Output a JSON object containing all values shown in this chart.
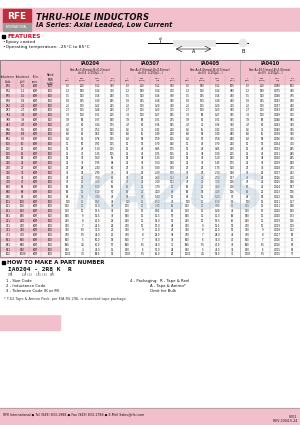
{
  "title_line1": "THRU-HOLE INDUCTORS",
  "title_line2": "IA Series: Axial Leaded, Low Current",
  "header_bg": "#f2c0cc",
  "pink_color": "#f2c0cc",
  "dark_pink": "#c8505a",
  "rfe_red": "#be2d3a",
  "rfe_gray": "#9a9a9a",
  "grid_color": "#aaaaaa",
  "grid_dark": "#666666",
  "text_dark": "#111111",
  "features_red": "#cc1133",
  "white": "#ffffff",
  "features": [
    "•Epoxy coated",
    "•Operating temperature: -25°C to 85°C"
  ],
  "series_headers": [
    "IA0204",
    "IA0307",
    "IA0405",
    "IA0410"
  ],
  "size_texts": [
    "Size:A=3.4(max),B=0.2(max)",
    "Size:A=7.0(max),B=0.5(max)",
    "Size:A=4.6(max),B=0.5(max)",
    "Size:A=10.5(max),B=1.0(max)"
  ],
  "size_texts2": [
    "d=0.4  L(250μ5...)",
    "d=0.4  L(250μ5...)",
    "d=0.5  L(250μ5...)",
    "d=0.5  L(250μ5...)"
  ],
  "left_headers": [
    "Inductance\nCode",
    "Inductance\n(μH)",
    "Tolerance",
    "Rated\nPWR\n(mW)"
  ],
  "sub_col_labels": [
    "L\n(μH)",
    "SRF\n(MHz)",
    "RDC\n(Ω)",
    "IDC\n(mA)"
  ],
  "table_data": [
    [
      "1R0",
      "1.0",
      "K/M",
      "100",
      "1.0",
      "200",
      "0.12",
      "330",
      "1.0",
      "200",
      "0.12",
      "430",
      "1.0",
      "180",
      "0.12",
      "500",
      "1.0",
      "200",
      "0.080",
      "500"
    ],
    [
      "1R2",
      "1.2",
      "K/M",
      "100",
      "1.2",
      "180",
      "0.14",
      "300",
      "1.2",
      "180",
      "0.14",
      "400",
      "1.2",
      "160",
      "0.14",
      "480",
      "1.2",
      "180",
      "0.075",
      "490"
    ],
    [
      "1R5",
      "1.5",
      "K/M",
      "100",
      "1.5",
      "160",
      "0.16",
      "290",
      "1.5",
      "160",
      "0.16",
      "390",
      "1.5",
      "145",
      "0.16",
      "460",
      "1.5",
      "160",
      "0.068",
      "475"
    ],
    [
      "1R8",
      "1.8",
      "K/M",
      "100",
      "1.8",
      "145",
      "0.19",
      "265",
      "1.8",
      "145",
      "0.18",
      "360",
      "1.8",
      "130",
      "0.18",
      "440",
      "1.8",
      "145",
      "0.063",
      "460"
    ],
    [
      "2R2",
      "2.2",
      "K/M",
      "100",
      "2.2",
      "130",
      "0.22",
      "245",
      "2.2",
      "130",
      "0.20",
      "340",
      "2.2",
      "115",
      "0.20",
      "410",
      "2.2",
      "130",
      "0.057",
      "440"
    ],
    [
      "2R7",
      "2.7",
      "K/M",
      "100",
      "2.7",
      "115",
      "0.26",
      "225",
      "2.7",
      "115",
      "0.23",
      "315",
      "2.7",
      "100",
      "0.23",
      "390",
      "2.7",
      "115",
      "0.053",
      "420"
    ],
    [
      "3R3",
      "3.3",
      "K/M",
      "100",
      "3.3",
      "100",
      "0.31",
      "205",
      "3.3",
      "100",
      "0.27",
      "295",
      "3.3",
      "90",
      "0.27",
      "365",
      "3.3",
      "100",
      "0.049",
      "400"
    ],
    [
      "3R9",
      "3.9",
      "K/M",
      "100",
      "3.9",
      "90",
      "0.37",
      "190",
      "3.9",
      "90",
      "0.31",
      "275",
      "3.9",
      "80",
      "0.31",
      "345",
      "3.9",
      "90",
      "0.046",
      "385"
    ],
    [
      "4R7",
      "4.7",
      "K/M",
      "100",
      "4.7",
      "80",
      "0.44",
      "175",
      "4.7",
      "80",
      "0.36",
      "255",
      "4.7",
      "72",
      "0.36",
      "320",
      "4.7",
      "80",
      "0.043",
      "370"
    ],
    [
      "5R6",
      "5.6",
      "K/M",
      "100",
      "5.6",
      "70",
      "0.52",
      "160",
      "5.6",
      "72",
      "0.42",
      "240",
      "5.6",
      "65",
      "0.42",
      "300",
      "5.6",
      "72",
      "0.040",
      "355"
    ],
    [
      "6R8",
      "6.8",
      "K/M",
      "100",
      "6.8",
      "62",
      "0.63",
      "145",
      "6.8",
      "65",
      "0.49",
      "220",
      "6.8",
      "58",
      "0.49",
      "280",
      "6.8",
      "65",
      "0.038",
      "340"
    ],
    [
      "8R2",
      "8.2",
      "K/M",
      "100",
      "8.2",
      "55",
      "0.76",
      "135",
      "8.2",
      "58",
      "0.59",
      "205",
      "8.2",
      "52",
      "0.58",
      "260",
      "8.2",
      "58",
      "0.036",
      "325"
    ],
    [
      "100",
      "10",
      "K/M",
      "100",
      "10",
      "50",
      "0.90",
      "125",
      "10",
      "52",
      "0.70",
      "190",
      "10",
      "46",
      "0.70",
      "240",
      "10",
      "52",
      "0.034",
      "310"
    ],
    [
      "120",
      "12",
      "K/M",
      "100",
      "12",
      "45",
      "1.10",
      "115",
      "12",
      "46",
      "0.85",
      "175",
      "12",
      "42",
      "0.85",
      "220",
      "12",
      "46",
      "0.033",
      "295"
    ],
    [
      "150",
      "15",
      "K/M",
      "100",
      "15",
      "40",
      "1.35",
      "105",
      "15",
      "42",
      "1.05",
      "165",
      "15",
      "38",
      "1.00",
      "205",
      "15",
      "42",
      "0.031",
      "280"
    ],
    [
      "180",
      "18",
      "K/M",
      "100",
      "18",
      "36",
      "1.60",
      "95",
      "18",
      "38",
      "1.25",
      "150",
      "18",
      "35",
      "1.20",
      "190",
      "18",
      "38",
      "0.030",
      "265"
    ],
    [
      "220",
      "22",
      "K/M",
      "100",
      "22",
      "32",
      "1.95",
      "88",
      "22",
      "35",
      "1.50",
      "140",
      "22",
      "32",
      "1.45",
      "175",
      "22",
      "35",
      "0.029",
      "250"
    ],
    [
      "270",
      "27",
      "K/M",
      "100",
      "27",
      "28",
      "2.40",
      "80",
      "27",
      "32",
      "1.80",
      "130",
      "27",
      "29",
      "1.75",
      "160",
      "27",
      "32",
      "0.028",
      "235"
    ],
    [
      "330",
      "33",
      "K/M",
      "100",
      "33",
      "25",
      "2.90",
      "73",
      "33",
      "29",
      "2.20",
      "120",
      "33",
      "26",
      "2.10",
      "148",
      "33",
      "29",
      "0.027",
      "222"
    ],
    [
      "390",
      "39",
      "K/M",
      "100",
      "39",
      "22",
      "3.50",
      "67",
      "39",
      "26",
      "2.60",
      "112",
      "39",
      "24",
      "2.50",
      "137",
      "39",
      "26",
      "0.026",
      "210"
    ],
    [
      "470",
      "47",
      "K/M",
      "100",
      "47",
      "20",
      "4.20",
      "61",
      "47",
      "24",
      "3.10",
      "103",
      "47",
      "22",
      "3.00",
      "126",
      "47",
      "24",
      "0.025",
      "198"
    ],
    [
      "560",
      "56",
      "K/M",
      "100",
      "56",
      "18",
      "5.00",
      "56",
      "56",
      "22",
      "3.70",
      "96",
      "56",
      "20",
      "3.60",
      "116",
      "56",
      "22",
      "0.024",
      "187"
    ],
    [
      "680",
      "68",
      "K/M",
      "100",
      "68",
      "16",
      "6.10",
      "51",
      "68",
      "20",
      "4.50",
      "88",
      "68",
      "18",
      "4.30",
      "106",
      "68",
      "20",
      "0.023",
      "176"
    ],
    [
      "820",
      "82",
      "K/M",
      "100",
      "82",
      "14",
      "7.40",
      "46",
      "82",
      "18",
      "5.40",
      "81",
      "82",
      "16",
      "5.20",
      "97",
      "82",
      "18",
      "0.022",
      "166"
    ],
    [
      "101",
      "100",
      "K/M",
      "100",
      "100",
      "13",
      "9.00",
      "42",
      "100",
      "16",
      "6.50",
      "74",
      "100",
      "15",
      "6.30",
      "89",
      "100",
      "16",
      "0.021",
      "157"
    ],
    [
      "121",
      "120",
      "K/M",
      "100",
      "120",
      "11",
      "11.0",
      "38",
      "120",
      "15",
      "7.90",
      "68",
      "120",
      "13",
      "7.60",
      "81",
      "120",
      "15",
      "0.021",
      "148"
    ],
    [
      "151",
      "150",
      "K/M",
      "100",
      "150",
      "10",
      "13.5",
      "35",
      "150",
      "13",
      "9.60",
      "62",
      "150",
      "12",
      "9.20",
      "74",
      "150",
      "13",
      "0.020",
      "140"
    ],
    [
      "181",
      "180",
      "K/M",
      "100",
      "180",
      "9",
      "16.5",
      "32",
      "180",
      "12",
      "11.5",
      "57",
      "180",
      "11",
      "11.0",
      "68",
      "180",
      "12",
      "0.020",
      "133"
    ],
    [
      "221",
      "220",
      "K/M",
      "100",
      "220",
      "8",
      "20.0",
      "29",
      "220",
      "11",
      "14.0",
      "52",
      "220",
      "10",
      "13.5",
      "62",
      "220",
      "11",
      "0.019",
      "126"
    ],
    [
      "271",
      "270",
      "K/M",
      "100",
      "270",
      "7",
      "24.5",
      "26",
      "270",
      "10",
      "17.0",
      "48",
      "270",
      "9",
      "16.5",
      "57",
      "270",
      "10",
      "0.019",
      "119"
    ],
    [
      "331",
      "330",
      "K/M",
      "100",
      "330",
      "6.5",
      "30.0",
      "24",
      "330",
      "9",
      "21.0",
      "44",
      "330",
      "8",
      "20.0",
      "52",
      "330",
      "9",
      "0.018",
      "112"
    ],
    [
      "471",
      "470",
      "K/M",
      "100",
      "470",
      "5.5",
      "42.0",
      "20",
      "470",
      "8",
      "29.0",
      "38",
      "470",
      "7",
      "28.0",
      "44",
      "470",
      "8",
      "0.017",
      "98"
    ],
    [
      "561",
      "560",
      "K/M",
      "100",
      "560",
      "5",
      "50.0",
      "18",
      "560",
      "7",
      "35.0",
      "34",
      "560",
      "6",
      "33.0",
      "40",
      "560",
      "7",
      "0.016",
      "92"
    ],
    [
      "681",
      "680",
      "K/M",
      "100",
      "680",
      "4.5",
      "61.0",
      "17",
      "680",
      "6.5",
      "42.0",
      "31",
      "680",
      "5.5",
      "40.0",
      "37",
      "680",
      "6.5",
      "0.016",
      "87"
    ],
    [
      "821",
      "820",
      "K/M",
      "100",
      "820",
      "4",
      "74.0",
      "15",
      "820",
      "6",
      "51.0",
      "28",
      "820",
      "5",
      "49.0",
      "34",
      "820",
      "6",
      "0.015",
      "82"
    ],
    [
      "102",
      "1000",
      "K/M",
      "100",
      "1000",
      "3.5",
      "90.0",
      "14",
      "1000",
      "5.5",
      "62.0",
      "26",
      "1000",
      "4.5",
      "59.0",
      "31",
      "1000",
      "5.5",
      "0.015",
      "77"
    ]
  ],
  "part_number_title": "HOW TO MAKE A PART NUMBER",
  "part_number_example": "IA0204 - 2R8 K  R",
  "pn_row1": [
    "CN",
    "LV (2)",
    "LG (3)",
    ""
  ],
  "pn_labels_left": [
    "1 - Size Code",
    "2 - Inductance Code",
    "3 - Tolerance Code (K or M)"
  ],
  "pn_labels_right": [
    "4 - Packaging:  R - Tape & Reel",
    "                A - Tape & Ammo*",
    "                Omit for Bulk"
  ],
  "note1": "* T-62 Tape & Ammo Pack, per EIA RS-296, is standard tape package.",
  "footer_left": "RFE International ● Tel (949) 833-1988 ● Fax (949) 833-1788 ● E-Mail Sales@rfei.com",
  "footer_right": "CK01\nREV 2004.5.24",
  "watermark": "KAZUS"
}
